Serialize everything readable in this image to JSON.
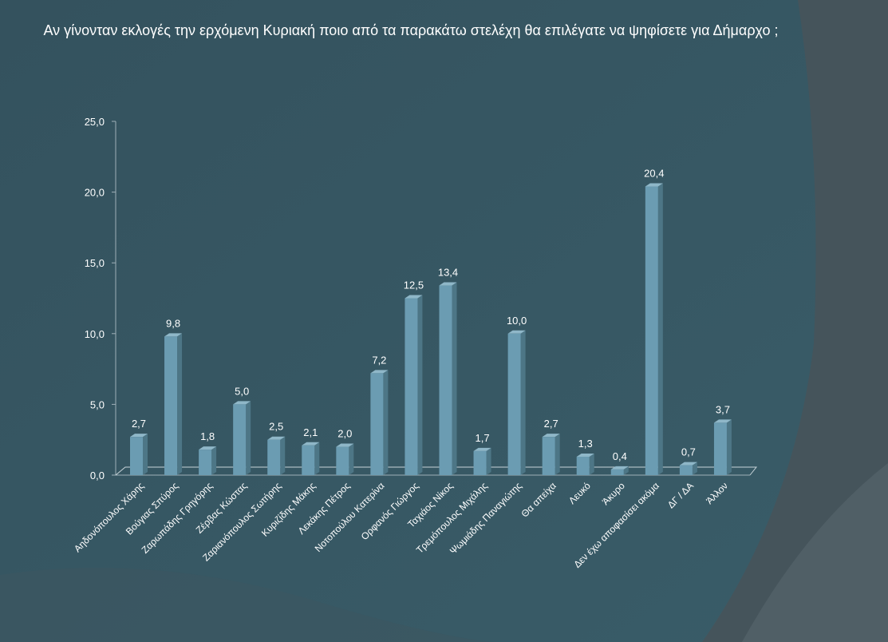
{
  "chart_data": {
    "type": "bar",
    "title": "Αν γίνονταν εκλογές την ερχόμενη Κυριακή ποιο από τα παρακάτω στελέχη θα επιλέγατε να ψηφίσετε για Δήμαρχο ;",
    "categories": [
      "Αηδονόπουλος Χάρης",
      "Βούγιας Σπύρος",
      "Ζαρωπάδης Γρηγόρης",
      "Ζέρβας Κώστας",
      "Ζαριανόπουλος Σωτήρης",
      "Κυριζίδης Μάκης",
      "Λεκάκης Πέτρος",
      "Νοτοπούλου Κατερίνα",
      "Ορφανός Γιώργος",
      "Ταχιάος Νίκος",
      "Τρεμόπουλος Μιχάλης",
      "Ψωμιάδης Παναγιώτης",
      "Θα απείχα",
      "Λευκό",
      "Άκυρο",
      "Δεν έχω αποφασίσει ακόμα",
      "ΔΓ / ΔΑ",
      "Άλλον"
    ],
    "values": [
      2.7,
      9.8,
      1.8,
      5.0,
      2.5,
      2.1,
      2.0,
      7.2,
      12.5,
      13.4,
      1.7,
      10.0,
      2.7,
      1.3,
      0.4,
      20.4,
      0.7,
      3.7
    ],
    "value_labels": [
      "2,7",
      "9,8",
      "1,8",
      "5,0",
      "2,5",
      "2,1",
      "2,0",
      "7,2",
      "12,5",
      "13,4",
      "1,7",
      "10,0",
      "2,7",
      "1,3",
      "0,4",
      "20,4",
      "0,7",
      "3,7"
    ],
    "ylim": [
      0,
      25
    ],
    "yticks": [
      "0,0",
      "5,0",
      "10,0",
      "15,0",
      "20,0",
      "25,0"
    ],
    "grid": false,
    "bar_color": "#6b9cb2"
  }
}
